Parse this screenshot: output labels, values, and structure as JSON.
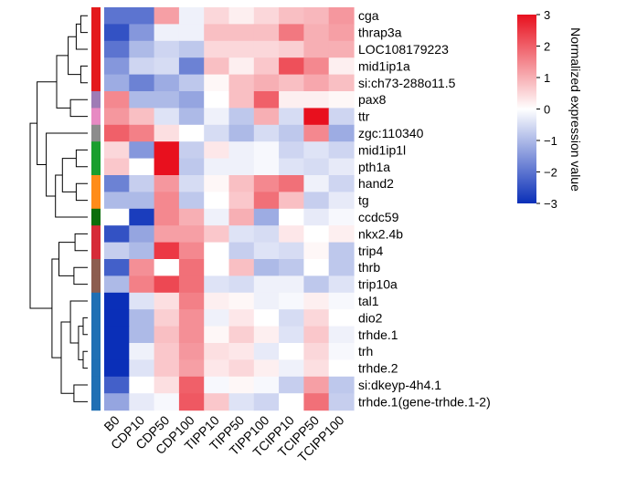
{
  "chart_data": {
    "type": "heatmap",
    "columns": [
      "B0",
      "CDP10",
      "CDP50",
      "CDP100",
      "TIPP10",
      "TIPP50",
      "TIPP100",
      "TCIPP10",
      "TCIPP50",
      "TCIPP100"
    ],
    "rows": [
      "cga",
      "thrap3a",
      "LOC108179223",
      "mid1ip1a",
      "si:ch73-288o11.5",
      "pax8",
      "ttr",
      "zgc:110340",
      "mid1ip1l",
      "pth1a",
      "hand2",
      "tg",
      "ccdc59",
      "nkx2.4b",
      "trip4",
      "thrb",
      "trip10a",
      "tal1",
      "dio2",
      "trhde.1",
      "trh",
      "trhde.2",
      "si:dkeyp-4h4.1",
      "trhde.1(gene-trhde.1-2)"
    ],
    "values": [
      [
        -2.0,
        -2.0,
        1.2,
        -0.2,
        0.5,
        0.2,
        0.5,
        0.8,
        0.9,
        1.3
      ],
      [
        -2.5,
        -1.5,
        -0.2,
        -0.2,
        0.8,
        0.8,
        0.8,
        1.7,
        1.0,
        1.2
      ],
      [
        -2.0,
        -1.0,
        -0.6,
        -0.8,
        0.5,
        0.5,
        0.5,
        0.6,
        1.0,
        1.0
      ],
      [
        -1.5,
        -0.6,
        -0.5,
        -1.8,
        0.8,
        0.2,
        0.7,
        2.2,
        1.5,
        0.2
      ],
      [
        -1.2,
        -1.8,
        -1.2,
        -0.8,
        0.1,
        0.8,
        1.0,
        0.8,
        1.1,
        0.8
      ],
      [
        1.5,
        -1.0,
        -1.0,
        -1.3,
        0.0,
        0.8,
        2.0,
        0.2,
        0.2,
        0.1
      ],
      [
        1.3,
        0.8,
        -0.4,
        -1.0,
        -0.2,
        -0.8,
        1.0,
        -0.5,
        3.0,
        -0.6
      ],
      [
        2.0,
        1.6,
        0.4,
        0.0,
        -0.5,
        -1.0,
        -0.5,
        -0.8,
        1.5,
        -1.2
      ],
      [
        0.5,
        -1.5,
        3.0,
        -0.7,
        0.3,
        -0.2,
        -0.1,
        -0.6,
        -0.4,
        -0.6
      ],
      [
        0.7,
        0.0,
        3.0,
        -0.8,
        -0.2,
        -0.2,
        -0.1,
        -0.4,
        -0.5,
        -0.3
      ],
      [
        -1.8,
        -0.7,
        1.3,
        -0.5,
        0.1,
        0.8,
        1.5,
        1.8,
        -0.2,
        -0.6
      ],
      [
        -1.0,
        -1.0,
        1.5,
        -0.8,
        0.0,
        0.7,
        1.8,
        0.8,
        -0.7,
        -0.3
      ],
      [
        0.0,
        -2.8,
        1.5,
        1.0,
        -0.2,
        1.0,
        -1.2,
        0.0,
        -0.3,
        -0.1
      ],
      [
        -2.5,
        -1.3,
        1.2,
        1.2,
        0.7,
        -0.4,
        -0.5,
        0.3,
        0.0,
        0.2
      ],
      [
        -0.7,
        -1.0,
        2.5,
        1.5,
        0.0,
        -0.7,
        -0.4,
        -0.5,
        0.1,
        -0.8
      ],
      [
        -2.3,
        1.4,
        0.0,
        1.8,
        0.0,
        0.8,
        -1.0,
        -0.8,
        0.0,
        -0.8
      ],
      [
        -1.0,
        1.6,
        2.3,
        1.8,
        -0.4,
        -0.5,
        -0.2,
        -0.2,
        -0.8,
        -0.4
      ],
      [
        -3.0,
        -0.4,
        0.4,
        1.6,
        0.2,
        0.1,
        -0.2,
        -0.1,
        0.2,
        -0.1
      ],
      [
        -3.0,
        -1.0,
        0.6,
        1.4,
        -0.2,
        0.3,
        0.0,
        -0.5,
        0.5,
        0.0
      ],
      [
        -3.0,
        -1.0,
        0.8,
        1.4,
        0.1,
        0.6,
        0.2,
        -0.4,
        0.7,
        -0.2
      ],
      [
        -3.0,
        -0.2,
        0.7,
        1.3,
        0.4,
        0.3,
        -0.3,
        0.0,
        0.5,
        -0.1
      ],
      [
        -3.0,
        -0.4,
        0.7,
        1.2,
        0.3,
        0.5,
        0.2,
        -0.2,
        0.4,
        0.0
      ],
      [
        -2.3,
        0.0,
        0.4,
        2.0,
        -0.1,
        0.1,
        -0.1,
        -0.7,
        1.2,
        -0.8
      ],
      [
        -1.3,
        -0.3,
        -0.1,
        2.1,
        0.7,
        -0.4,
        -0.6,
        0.0,
        1.8,
        -0.7
      ]
    ],
    "cluster_colors": [
      "#e41a1c",
      "#e41a1c",
      "#e41a1c",
      "#e41a1c",
      "#e41a1c",
      "#9e7bb5",
      "#e78ac3",
      "#8c8c8c",
      "#1a9e2e",
      "#1a9e2e",
      "#ff8c1a",
      "#ff8c1a",
      "#0b6e0b",
      "#d62b38",
      "#d62b38",
      "#8c5d4f",
      "#8c5d4f",
      "#1f6fb4",
      "#1f6fb4",
      "#1f6fb4",
      "#1f6fb4",
      "#1f6fb4",
      "#1f6fb4",
      "#1f6fb4"
    ],
    "colorbar": {
      "title": "Normalized expression value",
      "range": [
        -3,
        3
      ],
      "ticks": [
        3,
        2,
        1,
        0,
        -1,
        -2,
        -3
      ],
      "tick_labels": [
        "3",
        "2",
        "1",
        "0",
        "−1",
        "−2",
        "−3"
      ],
      "low_color": "#0a2fb8",
      "mid_color": "#ffffff",
      "high_color": "#e8101e"
    },
    "dendrogram": {
      "nodes": [
        {
          "children": [
            0,
            1
          ],
          "height": 0.6
        },
        {
          "children": [
            24,
            2
          ],
          "height": 1.0
        },
        {
          "children": [
            3,
            4
          ],
          "height": 0.6
        },
        {
          "children": [
            25,
            26
          ],
          "height": 1.7
        },
        {
          "children": [
            5,
            6
          ],
          "height": 1.5
        },
        {
          "children": [
            27,
            28
          ],
          "height": 2.7
        },
        {
          "children": [
            8,
            9
          ],
          "height": 1.0
        },
        {
          "children": [
            10,
            11
          ],
          "height": 1.0
        },
        {
          "children": [
            30,
            31
          ],
          "height": 2.2
        },
        {
          "children": [
            32,
            12
          ],
          "height": 2.8
        },
        {
          "children": [
            7,
            33
          ],
          "height": 3.6
        },
        {
          "children": [
            29,
            34
          ],
          "height": 4.4
        },
        {
          "children": [
            13,
            14
          ],
          "height": 1.1
        },
        {
          "children": [
            15,
            16
          ],
          "height": 1.2
        },
        {
          "children": [
            36,
            37
          ],
          "height": 2.5
        },
        {
          "children": [
            18,
            19
          ],
          "height": 0.4
        },
        {
          "children": [
            20,
            21
          ],
          "height": 0.4
        },
        {
          "children": [
            39,
            40
          ],
          "height": 0.8
        },
        {
          "children": [
            17,
            41
          ],
          "height": 1.5
        },
        {
          "children": [
            22,
            23
          ],
          "height": 1.2
        },
        {
          "children": [
            42,
            43
          ],
          "height": 2.3
        },
        {
          "children": [
            38,
            44
          ],
          "height": 3.1
        },
        {
          "children": [
            35,
            45
          ],
          "height": 5.0
        }
      ],
      "max_height": 5.0
    }
  }
}
